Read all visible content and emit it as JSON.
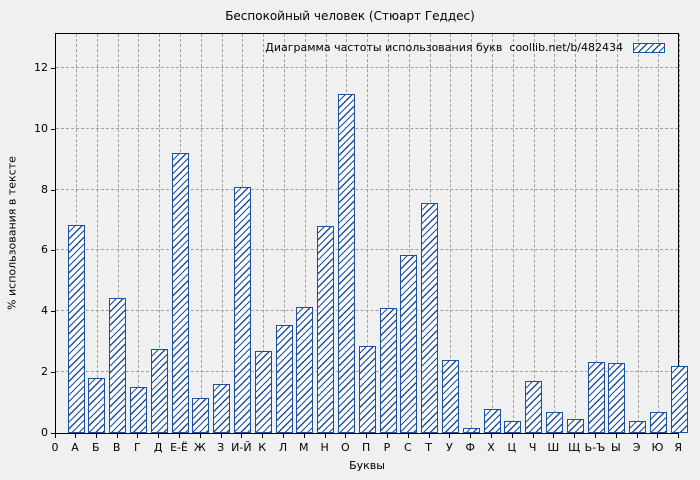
{
  "window": {
    "background": "#f0f0f0"
  },
  "chart_data": {
    "type": "bar",
    "title": "Беспокойный человек (Стюарт Геддес)",
    "legend": {
      "label": "Диаграмма частоты использования букв  coollib.net/b/482434",
      "position": "top-right",
      "swatch": "blue-diagonal-hatch"
    },
    "xlabel": "Буквы",
    "ylabel": "% использования в тексте",
    "x_origin_label": "0",
    "yticks": [
      0,
      2,
      4,
      6,
      8,
      10,
      12
    ],
    "ylim": [
      0,
      13.2
    ],
    "grid": true,
    "categories": [
      "А",
      "Б",
      "В",
      "Г",
      "Д",
      "Е-Ё",
      "Ж",
      "З",
      "И-Й",
      "К",
      "Л",
      "М",
      "Н",
      "О",
      "П",
      "Р",
      "С",
      "Т",
      "У",
      "Ф",
      "Х",
      "Ц",
      "Ч",
      "Ш",
      "Щ",
      "Ь-Ъ",
      "Ы",
      "Э",
      "Ю",
      "Я"
    ],
    "values": [
      6.85,
      1.8,
      4.45,
      1.5,
      2.75,
      9.2,
      1.15,
      1.6,
      8.1,
      2.7,
      3.55,
      4.15,
      6.8,
      11.15,
      2.85,
      4.1,
      5.85,
      7.55,
      2.4,
      0.15,
      0.8,
      0.4,
      1.7,
      0.7,
      0.45,
      2.35,
      2.3,
      0.4,
      0.7,
      2.2
    ],
    "colors": {
      "bar": "#1b4f9f",
      "bar_fill": "#ffffff",
      "background": "#f0f0f0",
      "grid": "#a0a0a0",
      "axis": "#000000",
      "text": "#000000"
    }
  }
}
